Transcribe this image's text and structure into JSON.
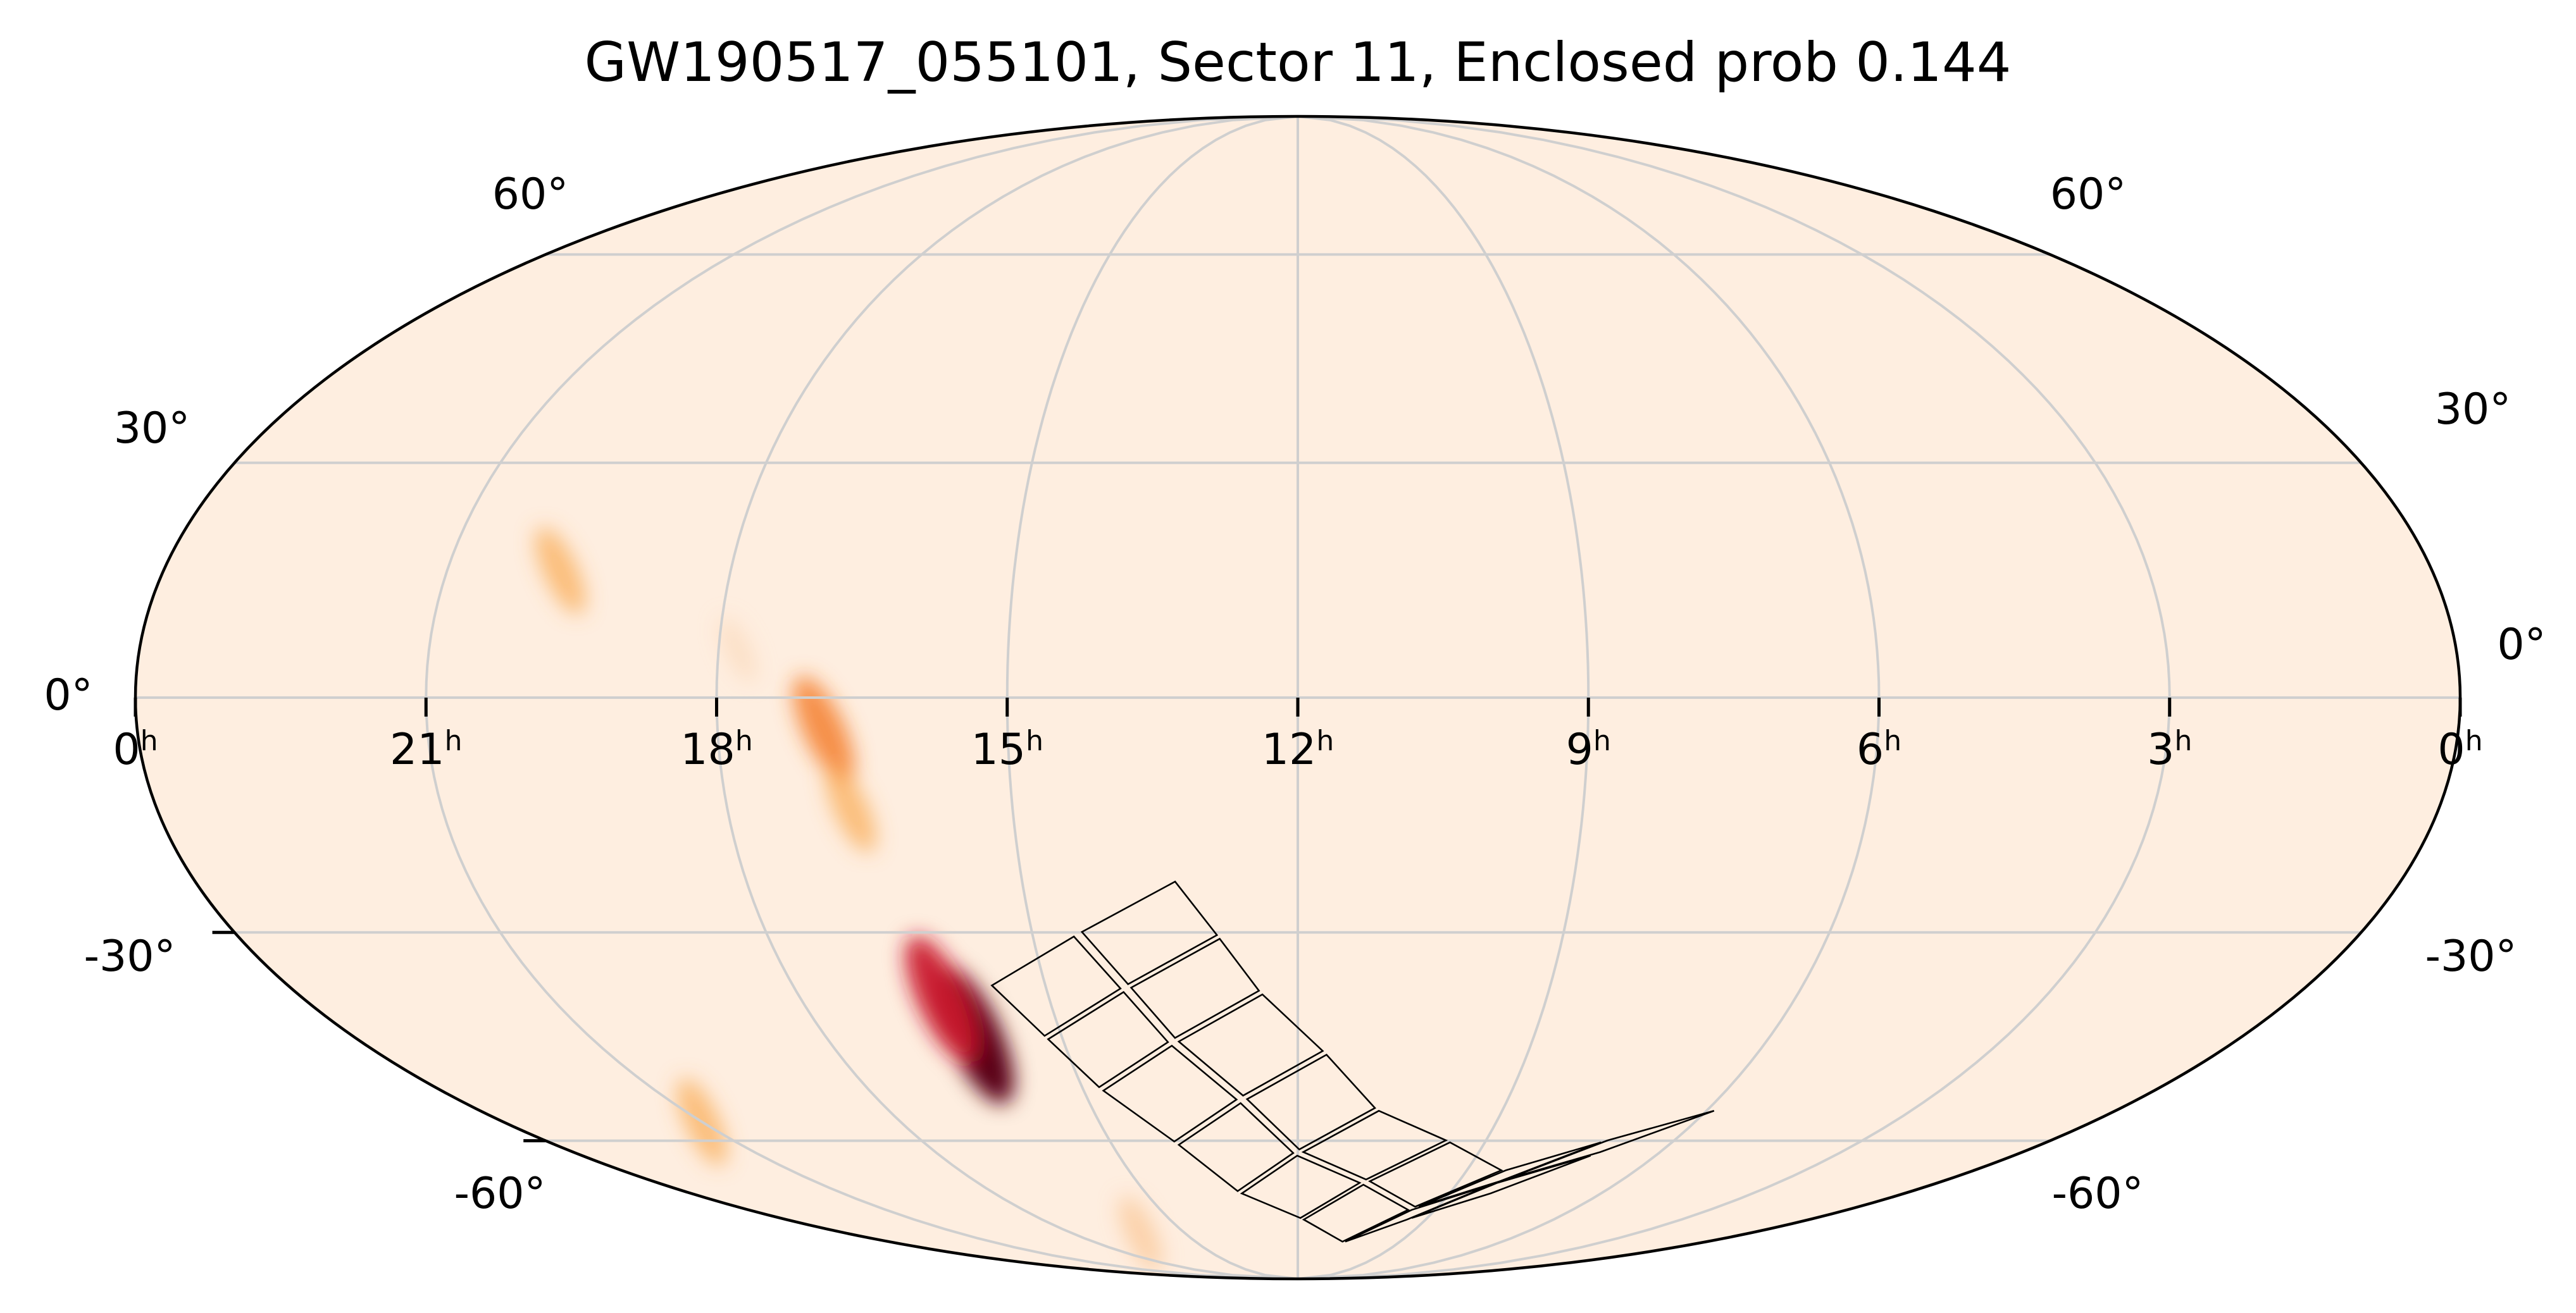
{
  "title": "GW190517_055101, Sector 11, Enclosed prob 0.144",
  "projection": "mollweide",
  "background_color": "#feeee0",
  "colormap": "hot_r",
  "ra_axis": {
    "labels": [
      {
        "hours": 24,
        "text": "0",
        "unit": "h"
      },
      {
        "hours": 21,
        "text": "21",
        "unit": "h"
      },
      {
        "hours": 18,
        "text": "18",
        "unit": "h"
      },
      {
        "hours": 15,
        "text": "15",
        "unit": "h"
      },
      {
        "hours": 12,
        "text": "12",
        "unit": "h"
      },
      {
        "hours": 9,
        "text": "9",
        "unit": "h"
      },
      {
        "hours": 6,
        "text": "6",
        "unit": "h"
      },
      {
        "hours": 3,
        "text": "3",
        "unit": "h"
      },
      {
        "hours": 0,
        "text": "0",
        "unit": "h"
      }
    ]
  },
  "dec_axis": {
    "left_labels": [
      {
        "dec": 60,
        "text": "60°"
      },
      {
        "dec": 30,
        "text": "30°"
      },
      {
        "dec": 0,
        "text": "0°"
      },
      {
        "dec": -30,
        "text": "-30°"
      },
      {
        "dec": -60,
        "text": "-60°"
      }
    ],
    "right_labels": [
      {
        "dec": 60,
        "text": "60°"
      },
      {
        "dec": 30,
        "text": "30°"
      },
      {
        "dec": 0,
        "text": "0°"
      },
      {
        "dec": -30,
        "text": "-30°"
      },
      {
        "dec": -60,
        "text": "-60°"
      }
    ]
  },
  "probability_blobs": [
    {
      "ra_hours": 16.1,
      "dec": -44,
      "intensity": 1.0,
      "color": "#5a0016"
    },
    {
      "ra_hours": 16.3,
      "dec": -39,
      "intensity": 0.85,
      "color": "#c9182c"
    },
    {
      "ra_hours": 16.9,
      "dec": -4,
      "intensity": 0.6,
      "color": "#f47a28"
    },
    {
      "ra_hours": 16.7,
      "dec": -14,
      "intensity": 0.35,
      "color": "#f9a94f"
    },
    {
      "ra_hours": 19.8,
      "dec": 16,
      "intensity": 0.35,
      "color": "#f9a94f"
    },
    {
      "ra_hours": 21.0,
      "dec": -57,
      "intensity": 0.35,
      "color": "#f9a94f"
    },
    {
      "ra_hours": 16.2,
      "dec": -77,
      "intensity": 0.2,
      "color": "#fbc189"
    },
    {
      "ra_hours": 17.8,
      "dec": 6,
      "intensity": 0.08,
      "color": "#fcd6b4"
    }
  ],
  "tess_sector": {
    "sector": 11,
    "cameras": 4,
    "ccds_per_camera": 4
  }
}
